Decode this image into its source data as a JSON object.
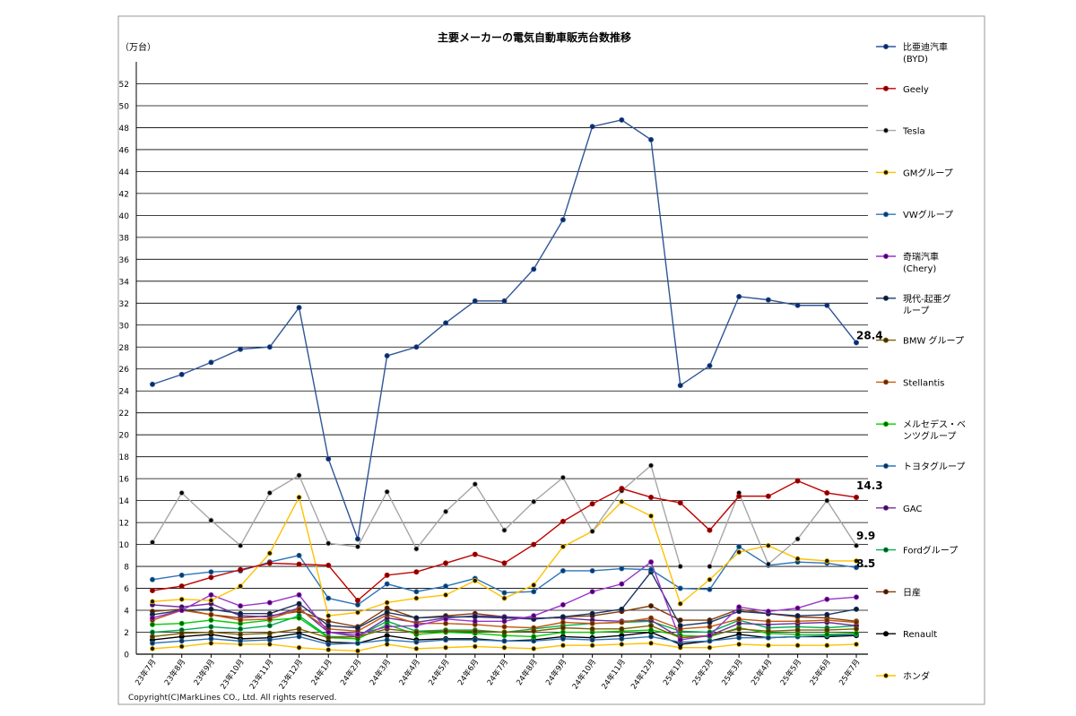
{
  "chart_data": {
    "type": "line",
    "title": "主要メーカーの電気自動車販売台数推移",
    "unit_label": "（万台）",
    "xlabel": "",
    "ylabel": "",
    "ylim": [
      0,
      54
    ],
    "ytick_step": 2,
    "grid": true,
    "legend_position": "right",
    "categories": [
      "23年7月",
      "23年8月",
      "23年9月",
      "23年10月",
      "23年11月",
      "23年12月",
      "24年1月",
      "24年2月",
      "24年3月",
      "24年4月",
      "24年5月",
      "24年6月",
      "24年7月",
      "24年8月",
      "24年9月",
      "24年10月",
      "24年11月",
      "24年12月",
      "25年1月",
      "25年2月",
      "25年3月",
      "25年4月",
      "25年5月",
      "25年6月",
      "25年7月"
    ],
    "series": [
      {
        "name": "比亜迪汽車(BYD)",
        "color": "#2f5597",
        "marker": "#0b2a66",
        "values": [
          24.6,
          25.5,
          26.6,
          27.8,
          28.0,
          31.6,
          17.8,
          10.5,
          27.2,
          28.0,
          30.2,
          32.2,
          32.2,
          35.1,
          39.6,
          48.1,
          48.7,
          46.9,
          24.5,
          26.3,
          32.6,
          32.3,
          31.8,
          31.8,
          28.4
        ]
      },
      {
        "name": "Geely",
        "color": "#c00000",
        "marker": "#7f0000",
        "values": [
          5.8,
          6.2,
          7.0,
          7.7,
          8.3,
          8.2,
          8.1,
          4.9,
          7.2,
          7.5,
          8.3,
          9.1,
          8.3,
          10.0,
          12.1,
          13.7,
          15.1,
          14.3,
          13.8,
          11.3,
          14.4,
          14.4,
          15.8,
          14.7,
          14.3
        ]
      },
      {
        "name": "Tesla",
        "color": "#a6a6a6",
        "marker": "#000000",
        "values": [
          10.2,
          14.7,
          12.2,
          9.9,
          14.7,
          16.3,
          10.1,
          9.8,
          14.8,
          9.6,
          13.0,
          15.5,
          11.3,
          13.9,
          16.1,
          11.2,
          14.9,
          17.2,
          8.0,
          8.0,
          14.7,
          8.2,
          10.5,
          14.0,
          9.9
        ]
      },
      {
        "name": "GMグループ",
        "color": "#ffc000",
        "marker": "#1a1a00",
        "values": [
          4.8,
          5.0,
          4.9,
          6.2,
          9.2,
          14.3,
          3.5,
          3.8,
          4.7,
          5.1,
          5.4,
          6.7,
          5.1,
          6.3,
          9.8,
          11.2,
          13.9,
          12.6,
          4.6,
          6.8,
          9.3,
          9.9,
          8.7,
          8.5,
          8.5
        ]
      },
      {
        "name": "VWグループ",
        "color": "#2e75b6",
        "marker": "#0b3a6b",
        "values": [
          6.8,
          7.2,
          7.5,
          7.6,
          8.4,
          9.0,
          5.1,
          4.5,
          6.4,
          5.7,
          6.2,
          6.9,
          5.6,
          5.7,
          7.6,
          7.6,
          7.8,
          7.7,
          6.0,
          5.9,
          9.8,
          8.1,
          8.4,
          8.3,
          7.9
        ]
      },
      {
        "name": "奇瑞汽車(Chery)",
        "color": "#9933cc",
        "marker": "#4b0066",
        "values": [
          3.3,
          4.0,
          5.4,
          4.4,
          4.7,
          5.4,
          2.0,
          1.8,
          2.5,
          2.6,
          3.2,
          3.0,
          3.0,
          3.5,
          4.5,
          5.7,
          6.4,
          8.4,
          1.3,
          1.7,
          4.3,
          3.9,
          4.2,
          5.0,
          5.2
        ]
      },
      {
        "name": "現代-起亜グループ",
        "color": "#1f3864",
        "marker": "#0d1b33",
        "values": [
          3.6,
          4.0,
          4.1,
          3.7,
          3.7,
          4.6,
          2.6,
          2.4,
          3.8,
          3.3,
          3.4,
          3.4,
          3.3,
          3.2,
          3.4,
          3.7,
          4.1,
          7.5,
          2.6,
          2.9,
          3.9,
          3.7,
          3.5,
          3.6,
          4.1
        ]
      },
      {
        "name": "BMW グループ",
        "color": "#7f6000",
        "marker": "#3f3000",
        "values": [
          1.6,
          1.9,
          2.0,
          1.8,
          1.9,
          2.3,
          1.5,
          1.6,
          2.3,
          2.0,
          2.1,
          2.1,
          2.0,
          2.1,
          2.4,
          2.3,
          2.3,
          2.6,
          1.5,
          1.7,
          2.3,
          2.1,
          2.2,
          2.2,
          2.3
        ]
      },
      {
        "name": "Stellantis",
        "color": "#c55a11",
        "marker": "#5c2a08",
        "values": [
          3.1,
          4.0,
          3.6,
          3.1,
          3.2,
          4.1,
          2.3,
          2.1,
          3.6,
          2.8,
          2.8,
          2.7,
          2.5,
          2.4,
          2.9,
          2.8,
          2.9,
          3.3,
          2.3,
          2.5,
          3.2,
          3.0,
          3.0,
          3.1,
          2.9
        ]
      },
      {
        "name": "メルセデス・ベンツグループ",
        "color": "#00cc00",
        "marker": "#006600",
        "values": [
          2.7,
          2.8,
          3.1,
          2.8,
          3.1,
          3.3,
          1.5,
          1.4,
          2.7,
          1.8,
          2.0,
          1.9,
          1.7,
          1.6,
          2.0,
          2.0,
          2.1,
          2.2,
          1.7,
          1.6,
          2.4,
          1.9,
          1.8,
          1.8,
          1.9
        ]
      },
      {
        "name": "トヨタグループ",
        "color": "#2e75b6",
        "marker": "#0d3057",
        "values": [
          1.0,
          1.2,
          1.4,
          1.2,
          1.3,
          1.6,
          0.9,
          1.0,
          1.3,
          1.1,
          1.3,
          1.3,
          1.2,
          1.2,
          1.4,
          1.3,
          1.4,
          1.6,
          1.1,
          1.2,
          1.5,
          1.5,
          1.6,
          1.7,
          1.8
        ]
      },
      {
        "name": "GAC",
        "color": "#7030a0",
        "marker": "#3a1055",
        "values": [
          4.5,
          4.3,
          4.6,
          3.5,
          3.4,
          4.2,
          2.0,
          1.6,
          3.3,
          2.9,
          3.3,
          3.5,
          3.4,
          3.3,
          3.3,
          3.1,
          3.0,
          3.1,
          1.5,
          1.7,
          2.8,
          2.7,
          2.8,
          2.9,
          2.6
        ]
      },
      {
        "name": "Fordグループ",
        "color": "#00b050",
        "marker": "#005526",
        "values": [
          2.0,
          2.2,
          2.5,
          2.3,
          2.6,
          3.5,
          1.6,
          1.6,
          3.0,
          2.1,
          2.2,
          2.2,
          2.0,
          2.3,
          2.6,
          2.8,
          2.9,
          3.0,
          2.1,
          2.0,
          3.1,
          2.4,
          2.5,
          2.4,
          2.6
        ]
      },
      {
        "name": "日産",
        "color": "#843c0c",
        "marker": "#3d1a05",
        "values": [
          3.9,
          4.1,
          3.6,
          3.3,
          3.5,
          3.9,
          3.0,
          2.5,
          4.2,
          3.3,
          3.5,
          3.7,
          3.4,
          3.2,
          3.4,
          3.5,
          3.9,
          4.4,
          3.1,
          3.1,
          4.1,
          3.7,
          3.4,
          3.3,
          3.0
        ]
      },
      {
        "name": "Renault",
        "color": "#000000",
        "marker": "#000000",
        "values": [
          1.3,
          1.6,
          1.8,
          1.4,
          1.5,
          1.9,
          1.1,
          1.0,
          1.7,
          1.3,
          1.4,
          1.4,
          1.2,
          1.3,
          1.6,
          1.5,
          1.7,
          2.0,
          0.9,
          1.2,
          1.8,
          1.5,
          1.6,
          1.6,
          1.7
        ]
      },
      {
        "name": "ホンダ",
        "color": "#ffc000",
        "marker": "#1a1a00",
        "values": [
          0.5,
          0.7,
          1.0,
          0.9,
          0.9,
          0.6,
          0.4,
          0.3,
          0.9,
          0.5,
          0.6,
          0.7,
          0.6,
          0.5,
          0.8,
          0.8,
          0.9,
          1.0,
          0.6,
          0.6,
          0.9,
          0.8,
          0.8,
          0.8,
          0.9
        ]
      }
    ],
    "data_labels": [
      {
        "series": "比亜迪汽車(BYD)",
        "category": "25年7月",
        "text": "28.4"
      },
      {
        "series": "Geely",
        "category": "25年7月",
        "text": "14.3"
      },
      {
        "series": "Tesla",
        "category": "25年7月",
        "text": "9.9"
      },
      {
        "series": "GMグループ",
        "category": "25年7月",
        "text": "8.5"
      }
    ],
    "copyright": "Copyright(C)MarkLines CO., Ltd. All rights reserved."
  }
}
